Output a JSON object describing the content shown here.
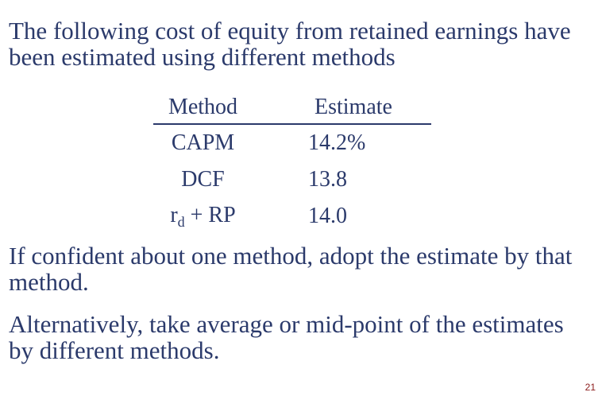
{
  "slide": {
    "heading": "The following cost of equity from retained earnings have been estimated using different methods",
    "table": {
      "headers": [
        "Method",
        "Estimate"
      ],
      "rows": [
        {
          "method": "CAPM",
          "estimate": "14.2%"
        },
        {
          "method": "DCF",
          "estimate": "13.8"
        },
        {
          "method_base": "r",
          "method_sub": "d",
          "method_rest": " + RP",
          "estimate": "14.0"
        }
      ]
    },
    "paragraph1": "If confident about one method, adopt the estimate by that method.",
    "paragraph2": "Alternatively, take average or mid-point of the estimates by different methods.",
    "page_number": "21"
  }
}
